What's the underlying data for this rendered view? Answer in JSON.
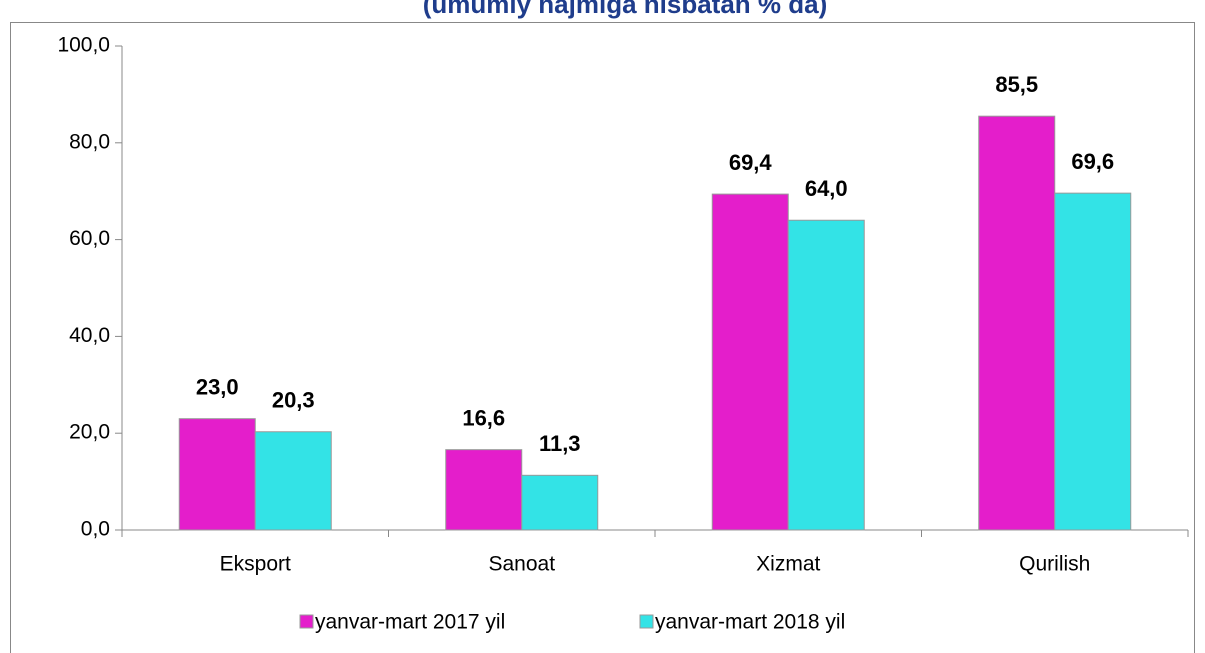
{
  "chart_data": {
    "type": "bar",
    "title": "(umumiy hajmiga nisbatan  % da)",
    "categories": [
      "Eksport",
      "Sanoat",
      "Xizmat",
      "Qurilish"
    ],
    "series": [
      {
        "name": "yanvar-mart 2017 yil",
        "color": "#e41ecb",
        "values": [
          23.0,
          16.6,
          69.4,
          85.5
        ],
        "value_labels": [
          "23,0",
          "16,6",
          "69,4",
          "85,5"
        ]
      },
      {
        "name": "yanvar-mart 2018 yil",
        "color": "#33e3e6",
        "values": [
          20.3,
          11.3,
          64.0,
          69.6
        ],
        "value_labels": [
          "20,3",
          "11,3",
          "64,0",
          "69,6"
        ]
      }
    ],
    "ylim": [
      0,
      100
    ],
    "yticks": [
      {
        "value": 0,
        "label": "0,0"
      },
      {
        "value": 20,
        "label": "20,0"
      },
      {
        "value": 40,
        "label": "40,0"
      },
      {
        "value": 60,
        "label": "60,0"
      },
      {
        "value": 80,
        "label": "80,0"
      },
      {
        "value": 100,
        "label": "100,0"
      }
    ],
    "legend": "bottom",
    "grid": false
  }
}
